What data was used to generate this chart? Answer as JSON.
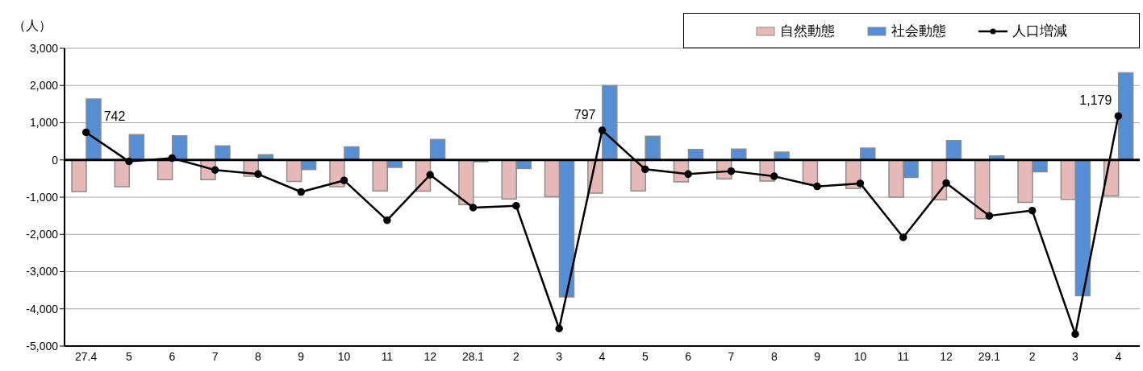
{
  "chart_data": {
    "type": "bar",
    "ylabel": "（人）",
    "categories": [
      "27.4",
      "5",
      "6",
      "7",
      "8",
      "9",
      "10",
      "11",
      "12",
      "28.1",
      "2",
      "3",
      "4",
      "5",
      "6",
      "7",
      "8",
      "9",
      "10",
      "11",
      "12",
      "29.1",
      "2",
      "3",
      "4"
    ],
    "series": [
      {
        "name": "自然動態",
        "color": "#e6b9b8",
        "values": [
          -850,
          -720,
          -530,
          -530,
          -440,
          -580,
          -720,
          -830,
          -840,
          -1200,
          -1050,
          -990,
          -890,
          -830,
          -590,
          -510,
          -570,
          -650,
          -770,
          -1000,
          -1070,
          -1580,
          -1140,
          -1060,
          -970
        ]
      },
      {
        "name": "社会動態",
        "color": "#558ed5",
        "values": [
          1640,
          680,
          650,
          380,
          140,
          -260,
          350,
          -200,
          550,
          -50,
          -230,
          -3680,
          2000,
          640,
          280,
          290,
          210,
          0,
          320,
          -470,
          520,
          110,
          -320,
          -3650,
          2340
        ]
      },
      {
        "name": "人口増減",
        "type": "line",
        "color": "#000000",
        "marker": "circle",
        "values": [
          742,
          -40,
          50,
          -270,
          -380,
          -860,
          -550,
          -1620,
          -400,
          -1280,
          -1230,
          -4530,
          797,
          -250,
          -380,
          -300,
          -440,
          -710,
          -630,
          -2080,
          -620,
          -1500,
          -1360,
          -4680,
          1179
        ],
        "value_labels": [
          "742",
          null,
          null,
          null,
          null,
          null,
          null,
          null,
          null,
          null,
          null,
          null,
          "797",
          null,
          null,
          null,
          null,
          null,
          null,
          null,
          null,
          null,
          null,
          null,
          "1,179"
        ]
      }
    ],
    "ylim": [
      -5000,
      3000
    ],
    "yticks": [
      {
        "value": -5000,
        "label": "-5,000"
      },
      {
        "value": -4000,
        "label": "-4,000"
      },
      {
        "value": -3000,
        "label": "-3,000"
      },
      {
        "value": -2000,
        "label": "-2,000"
      },
      {
        "value": -1000,
        "label": "-1,000"
      },
      0,
      {
        "value": 1000,
        "label": "1,000"
      },
      {
        "value": 2000,
        "label": "2,000"
      },
      {
        "value": 3000,
        "label": "3,000"
      }
    ],
    "grid": "y",
    "legend": "top right"
  }
}
